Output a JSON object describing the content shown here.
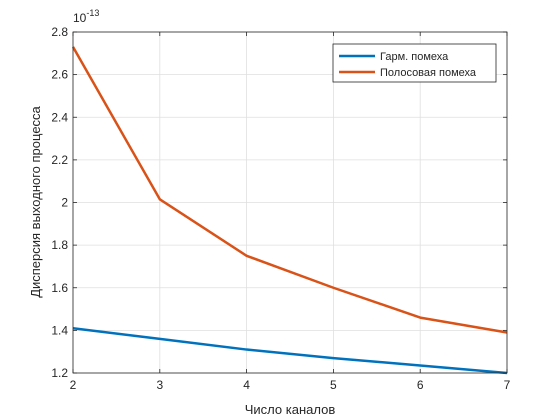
{
  "chart_data": {
    "type": "line",
    "xlabel": "Число каналов",
    "ylabel": "Дисперсия выходного процесса",
    "exponent_label": "10",
    "exponent_power": "-13",
    "xlim": [
      2,
      7
    ],
    "ylim": [
      1.2,
      2.8
    ],
    "x_ticks": [
      "2",
      "3",
      "4",
      "5",
      "6",
      "7"
    ],
    "y_ticks": [
      "1.2",
      "1.4",
      "1.6",
      "1.8",
      "2",
      "2.2",
      "2.4",
      "2.6",
      "2.8"
    ],
    "grid": true,
    "legend_position": "top-right",
    "x": [
      2,
      3,
      4,
      5,
      6,
      7
    ],
    "series": [
      {
        "name": "Гарм. помеха",
        "color": "#0072BD",
        "values": [
          1.41,
          1.36,
          1.31,
          1.27,
          1.235,
          1.2
        ]
      },
      {
        "name": "Полосовая помеха",
        "color": "#D95319",
        "values": [
          2.73,
          2.015,
          1.75,
          1.6,
          1.46,
          1.39
        ]
      }
    ]
  }
}
